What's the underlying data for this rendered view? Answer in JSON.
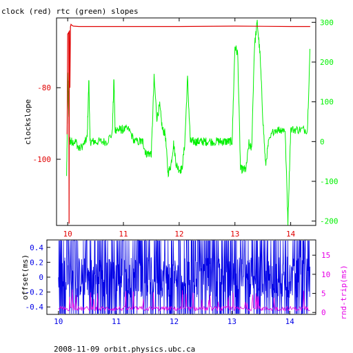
{
  "chart_data": [
    {
      "type": "line",
      "title": "clock (red) rtc (green) slopes",
      "xlabel": "",
      "ylabel": "clockslope",
      "x_ticks": [
        "10",
        "11",
        "12",
        "13",
        "14"
      ],
      "xlim": [
        9.8,
        14.45
      ],
      "ylim": [
        -118.5,
        -60.5
      ],
      "y_ticks": [
        "-80",
        "-100"
      ],
      "y2lim": [
        -211,
        311
      ],
      "y2_ticks": [
        "300",
        "200",
        "100",
        "0",
        "-100",
        "-200"
      ],
      "colors": {
        "clock": "#e00000",
        "rtc": "#00f000",
        "axis_left": "#e00000",
        "axis_right": "#00f000",
        "x_ticks": "#e00000"
      },
      "series": [
        {
          "key": "clock",
          "axis": "left",
          "x": [
            9.99,
            10.0,
            10.02,
            10.025,
            10.03,
            10.04,
            10.05,
            10.06,
            10.08,
            10.1,
            10.2,
            10.5,
            11.0,
            12.0,
            13.0,
            14.0,
            14.35
          ],
          "y": [
            -93,
            -65,
            -64.5,
            -118,
            -64,
            -80,
            -63,
            -62.3,
            -62.6,
            -62.8,
            -62.9,
            -62.9,
            -62.9,
            -62.9,
            -62.8,
            -62.9,
            -62.9
          ]
        },
        {
          "key": "rtc",
          "axis": "right",
          "noisy": true,
          "x": [
            9.98,
            9.99,
            10.0,
            10.01,
            10.03,
            10.05,
            10.08,
            10.15,
            10.2,
            10.3,
            10.35,
            10.38,
            10.4,
            10.45,
            10.5,
            10.6,
            10.7,
            10.8,
            10.83,
            10.85,
            10.9,
            10.95,
            11.0,
            11.1,
            11.2,
            11.3,
            11.35,
            11.4,
            11.45,
            11.5,
            11.55,
            11.6,
            11.65,
            11.7,
            11.75,
            11.8,
            11.85,
            11.9,
            11.95,
            12.0,
            12.05,
            12.1,
            12.15,
            12.2,
            12.25,
            12.3,
            12.35,
            12.4,
            12.45,
            12.5,
            12.6,
            12.7,
            12.75,
            12.8,
            12.85,
            12.9,
            12.95,
            13.0,
            13.05,
            13.1,
            13.15,
            13.2,
            13.25,
            13.3,
            13.35,
            13.4,
            13.45,
            13.5,
            13.55,
            13.6,
            13.7,
            13.8,
            13.85,
            13.9,
            13.95,
            14.0,
            14.1,
            14.2,
            14.3,
            14.35
          ],
          "y": [
            -90,
            0,
            180,
            120,
            5,
            0,
            0,
            0,
            -20,
            -5,
            10,
            160,
            0,
            0,
            0,
            0,
            0,
            20,
            160,
            30,
            30,
            30,
            30,
            30,
            0,
            0,
            0,
            -30,
            -30,
            -30,
            160,
            60,
            90,
            30,
            20,
            -80,
            -60,
            -5,
            -60,
            -70,
            -70,
            -5,
            160,
            0,
            0,
            0,
            0,
            0,
            0,
            0,
            0,
            0,
            0,
            0,
            0,
            0,
            0,
            240,
            220,
            -70,
            -70,
            -70,
            -5,
            -20,
            240,
            300,
            220,
            60,
            -60,
            -5,
            30,
            30,
            30,
            30,
            -200,
            30,
            30,
            30,
            30,
            250
          ]
        }
      ]
    },
    {
      "type": "line",
      "xlabel": "",
      "ylabel": "offset(ms)",
      "y2label": "rnd-trip(ms)",
      "x_ticks": [
        "10",
        "11",
        "12",
        "13",
        "14"
      ],
      "xlim": [
        9.8,
        14.45
      ],
      "ylim": [
        -0.5,
        0.5
      ],
      "y_ticks": [
        "0.4",
        "0.2",
        "0",
        "-0.2",
        "-0.4"
      ],
      "y2lim": [
        -0.5,
        19
      ],
      "y2_ticks": [
        "15",
        "10",
        "5",
        "0"
      ],
      "colors": {
        "offset": "#0000e6",
        "rnd_trip": "#e600e6",
        "x_ticks": "#0000e6"
      },
      "series": [
        {
          "key": "offset",
          "axis": "left",
          "x_range": [
            10.0,
            14.35
          ],
          "range": [
            -0.5,
            0.5
          ],
          "noisy": true
        },
        {
          "key": "rnd_trip",
          "axis": "right",
          "x_range": [
            10.0,
            14.35
          ],
          "typical": 1,
          "range": [
            0,
            6
          ],
          "noisy": true
        }
      ]
    }
  ],
  "footer": "2008-11-09 orbit.physics.ubc.ca"
}
